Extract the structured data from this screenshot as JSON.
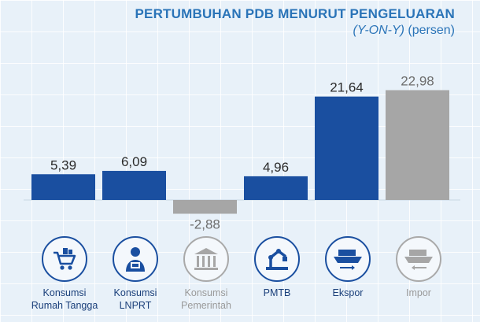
{
  "header": {
    "title": "PERTUMBUHAN PDB MENURUT PENGELUARAN",
    "subtitle_italic": "(Y-ON-Y)",
    "subtitle_rest": " (persen)"
  },
  "colors": {
    "positive": "#1a4fa0",
    "gray": "#a6a6a6",
    "value_text": "#2b2b2b",
    "value_text_gray": "#6d6d6d"
  },
  "chart_data": {
    "type": "bar",
    "title": "PERTUMBUHAN PDB MENURUT PENGELUARAN (Y-ON-Y) (persen)",
    "categories": [
      "Konsumsi Rumah Tangga",
      "Konsumsi LNPRT",
      "Konsumsi Pemerintah",
      "PMTB",
      "Ekspor",
      "Impor"
    ],
    "values": [
      5.39,
      6.09,
      -2.88,
      4.96,
      21.64,
      22.98
    ],
    "value_labels": [
      "5,39",
      "6,09",
      "-2,88",
      "4,96",
      "21,64",
      "22,98"
    ],
    "gray_bars": [
      false,
      false,
      true,
      false,
      false,
      true
    ],
    "ylim": [
      -3,
      23
    ],
    "grid": true,
    "xlabel": "",
    "ylabel": ""
  },
  "categories": [
    {
      "line1": "Konsumsi",
      "line2": "Rumah Tangga",
      "icon": "shopping-cart-icon",
      "gray": false
    },
    {
      "line1": "Konsumsi",
      "line2": "LNPRT",
      "icon": "person-icon",
      "gray": false
    },
    {
      "line1": "Konsumsi",
      "line2": "Pemerintah",
      "icon": "government-building-icon",
      "gray": true
    },
    {
      "line1": "PMTB",
      "line2": "",
      "icon": "robot-arm-icon",
      "gray": false
    },
    {
      "line1": "Ekspor",
      "line2": "",
      "icon": "ship-export-icon",
      "gray": false
    },
    {
      "line1": "Impor",
      "line2": "",
      "icon": "ship-import-icon",
      "gray": true
    }
  ]
}
